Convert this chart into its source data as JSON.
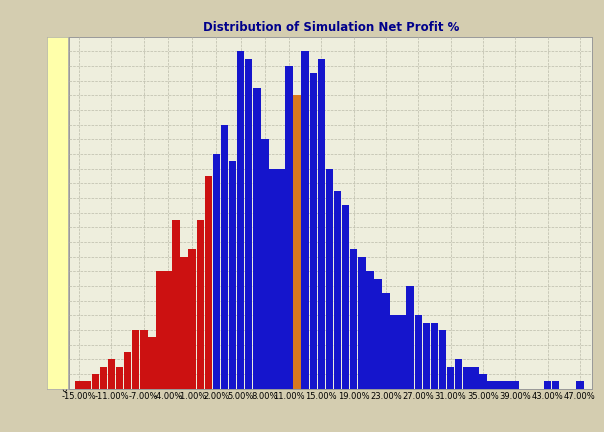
{
  "title": "Distribution of Simulation Net Profit %",
  "title_color": "#00008B",
  "title_fontsize": 8.5,
  "outer_bg": "#D4CDB0",
  "plot_bg_color": "#EEEEDD",
  "grid_color": "#BBBBAA",
  "ylim_max": 48,
  "ytick_step": 2,
  "x_positions": [
    -15,
    -14,
    -13,
    -12,
    -11,
    -10,
    -9,
    -8,
    -7,
    -6,
    -5,
    -4,
    -3,
    -2,
    -1,
    0,
    1,
    2,
    3,
    4,
    5,
    6,
    7,
    8,
    9,
    10,
    11,
    12,
    13,
    14,
    15,
    16,
    17,
    18,
    19,
    20,
    21,
    22,
    23,
    24,
    25,
    26,
    27,
    28,
    29,
    30,
    31,
    32,
    33,
    34,
    35,
    36,
    37,
    38,
    39,
    40,
    41,
    42,
    43,
    44,
    45,
    46,
    47
  ],
  "values": [
    1,
    1,
    2,
    3,
    4,
    3,
    5,
    8,
    8,
    7,
    16,
    16,
    23,
    18,
    19,
    23,
    29,
    32,
    36,
    31,
    46,
    45,
    41,
    34,
    30,
    30,
    44,
    40,
    46,
    43,
    45,
    30,
    27,
    25,
    19,
    18,
    16,
    15,
    13,
    10,
    10,
    14,
    10,
    9,
    9,
    8,
    3,
    4,
    3,
    3,
    2,
    1,
    1,
    1,
    1,
    0,
    0,
    0,
    1,
    1,
    0,
    0,
    1
  ],
  "orange_bar_x": 12,
  "red_max_x": 1,
  "blue_min_x": 2,
  "red_color": "#CC1111",
  "blue_color": "#1515CC",
  "orange_color": "#D87820",
  "bar_width": 0.93,
  "xtick_labels": [
    "-15.00%",
    "-11.00%",
    "-7.00%",
    "-4.00%",
    "-1.00%",
    "2.00%",
    "5.00%",
    "8.00%",
    "11.00%",
    "15.00%",
    "19.00%",
    "23.00%",
    "27.00%",
    "31.00%",
    "35.00%",
    "39.00%",
    "43.00%",
    "47.00%"
  ],
  "xtick_positions": [
    -15,
    -11,
    -7,
    -4,
    -1,
    2,
    5,
    8,
    11,
    15,
    19,
    23,
    27,
    31,
    35,
    39,
    43,
    47
  ],
  "yellow_strip_color": "#FFFFAA",
  "xlim_left": -16.2,
  "xlim_right": 48.5
}
